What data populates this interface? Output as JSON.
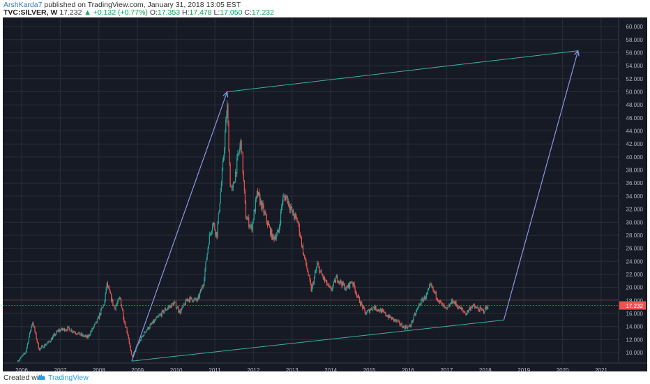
{
  "header": {
    "author": "ArshKarda7",
    "published_text": "published on TradingView.com, January 31, 2018 13:05 EST",
    "symbol": "TVC:SILVER, W",
    "last": "17.232",
    "change": "+0.132 (+0.77%)",
    "o_label": "O:",
    "o": "17.353",
    "h_label": "H:",
    "h": "17.478",
    "l_label": "L:",
    "l": "17.050",
    "c_label": "C:",
    "c": "17.232"
  },
  "footer": {
    "created_with": "Created with",
    "brand": "TradingView"
  },
  "colors": {
    "background": "#161a25",
    "grid": "#2a2e39",
    "up": "#26a69a",
    "down": "#ef5350",
    "arrow": "#8f97e8",
    "channel": "#3fb0a0",
    "price_line": "#ef5350"
  },
  "chart_data": {
    "type": "candlestick",
    "symbol": "TVC:SILVER",
    "interval": "W",
    "ylim": [
      8.4,
      61.4
    ],
    "y_ticks": [
      "10.000",
      "12.000",
      "14.000",
      "16.000",
      "18.000",
      "20.000",
      "22.000",
      "24.000",
      "26.000",
      "28.000",
      "30.000",
      "32.000",
      "34.000",
      "36.000",
      "38.000",
      "40.000",
      "42.000",
      "44.000",
      "46.000",
      "48.000",
      "50.000",
      "52.000",
      "54.000",
      "56.000",
      "58.000",
      "60.000"
    ],
    "x_ticks": [
      "2006",
      "2007",
      "2008",
      "2009",
      "2010",
      "2011",
      "2012",
      "2013",
      "2014",
      "2015",
      "2016",
      "2017",
      "2018",
      "2019",
      "2020",
      "2021"
    ],
    "last_price": "17.232",
    "price_path": [
      [
        2005.9,
        8.7
      ],
      [
        2006.1,
        10.0
      ],
      [
        2006.28,
        14.8
      ],
      [
        2006.45,
        10.5
      ],
      [
        2006.7,
        11.6
      ],
      [
        2006.95,
        13.4
      ],
      [
        2007.2,
        13.7
      ],
      [
        2007.5,
        12.8
      ],
      [
        2007.7,
        12.3
      ],
      [
        2007.95,
        14.8
      ],
      [
        2008.15,
        17.8
      ],
      [
        2008.2,
        20.6
      ],
      [
        2008.4,
        16.8
      ],
      [
        2008.55,
        18.4
      ],
      [
        2008.65,
        15.0
      ],
      [
        2008.75,
        12.8
      ],
      [
        2008.85,
        9.2
      ],
      [
        2009.0,
        11.2
      ],
      [
        2009.2,
        13.3
      ],
      [
        2009.4,
        14.6
      ],
      [
        2009.7,
        16.5
      ],
      [
        2009.95,
        17.6
      ],
      [
        2010.1,
        16.2
      ],
      [
        2010.3,
        18.3
      ],
      [
        2010.55,
        18.0
      ],
      [
        2010.7,
        20.5
      ],
      [
        2010.85,
        27.5
      ],
      [
        2010.95,
        30.0
      ],
      [
        2011.05,
        28.0
      ],
      [
        2011.2,
        38.0
      ],
      [
        2011.32,
        48.0
      ],
      [
        2011.4,
        36.0
      ],
      [
        2011.45,
        34.5
      ],
      [
        2011.6,
        40.0
      ],
      [
        2011.68,
        42.5
      ],
      [
        2011.8,
        31.0
      ],
      [
        2011.95,
        29.0
      ],
      [
        2012.1,
        34.5
      ],
      [
        2012.3,
        31.0
      ],
      [
        2012.5,
        27.5
      ],
      [
        2012.65,
        28.5
      ],
      [
        2012.75,
        33.5
      ],
      [
        2012.85,
        34.0
      ],
      [
        2013.0,
        31.5
      ],
      [
        2013.15,
        30.0
      ],
      [
        2013.3,
        25.0
      ],
      [
        2013.4,
        22.5
      ],
      [
        2013.5,
        19.5
      ],
      [
        2013.65,
        23.5
      ],
      [
        2013.8,
        21.5
      ],
      [
        2014.0,
        19.5
      ],
      [
        2014.15,
        21.5
      ],
      [
        2014.4,
        19.8
      ],
      [
        2014.55,
        21.0
      ],
      [
        2014.7,
        18.5
      ],
      [
        2014.9,
        16.0
      ],
      [
        2015.1,
        17.0
      ],
      [
        2015.3,
        16.4
      ],
      [
        2015.5,
        15.5
      ],
      [
        2015.7,
        14.8
      ],
      [
        2015.9,
        13.9
      ],
      [
        2016.05,
        14.0
      ],
      [
        2016.3,
        17.5
      ],
      [
        2016.5,
        19.0
      ],
      [
        2016.58,
        20.3
      ],
      [
        2016.7,
        19.0
      ],
      [
        2016.85,
        17.5
      ],
      [
        2017.0,
        16.5
      ],
      [
        2017.15,
        18.0
      ],
      [
        2017.3,
        17.0
      ],
      [
        2017.5,
        16.0
      ],
      [
        2017.65,
        17.2
      ],
      [
        2017.8,
        16.7
      ],
      [
        2017.95,
        16.4
      ],
      [
        2018.08,
        17.2
      ]
    ],
    "annotations": [
      {
        "type": "arrow",
        "from": [
          2008.85,
          8.7
        ],
        "to": [
          2011.32,
          50.0
        ]
      },
      {
        "type": "arrow",
        "from": [
          2018.48,
          15.0
        ],
        "to": [
          2020.4,
          56.3
        ]
      },
      {
        "type": "line",
        "from": [
          2011.32,
          50.0
        ],
        "to": [
          2020.4,
          56.3
        ]
      },
      {
        "type": "line",
        "from": [
          2008.85,
          8.7
        ],
        "to": [
          2018.48,
          15.0
        ]
      }
    ]
  }
}
